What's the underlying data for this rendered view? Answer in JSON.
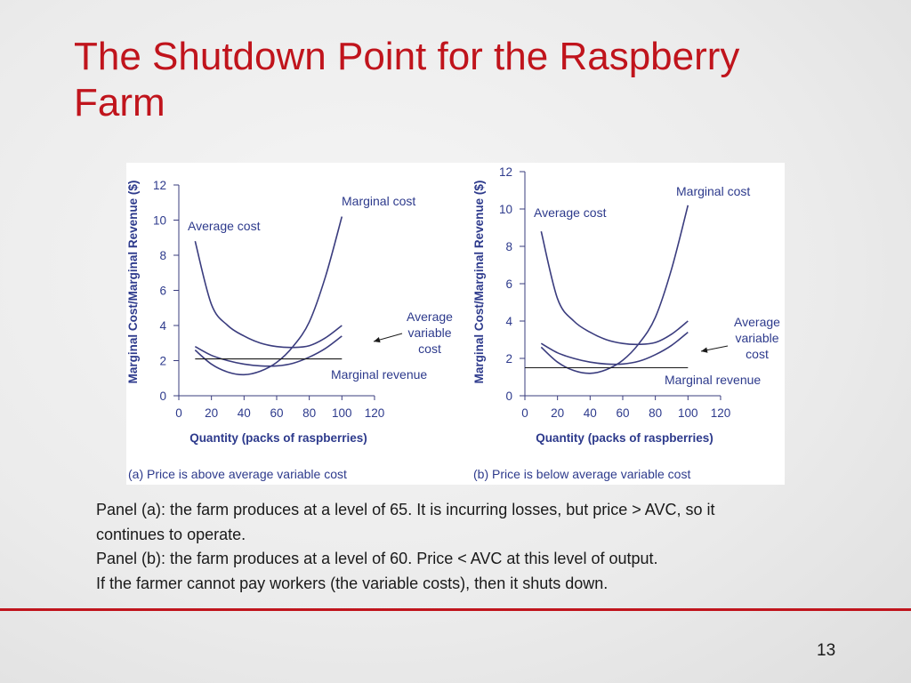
{
  "slide": {
    "title": "The Shutdown Point for the Raspberry Farm",
    "caption_lines": [
      "Panel (a):  the farm produces at a level of 65. It is incurring losses, but price > AVC, so it",
      "continues to operate.",
      "Panel (b):  the farm produces at a level of 60. Price < AVC at this level of output.",
      "If the farmer cannot pay workers (the variable costs), then it shuts down."
    ],
    "page_number": "13"
  },
  "colors": {
    "curve": "#3a3c7e",
    "axis_text": "#2d3a8c",
    "title": "#c0141c"
  },
  "chart_data": [
    {
      "type": "line",
      "panel_caption": "(a) Price is above average variable cost",
      "xlabel": "Quantity (packs of raspberries)",
      "ylabel": "Marginal Cost/Marginal Revenue ($)",
      "xlim": [
        0,
        120
      ],
      "ylim": [
        0,
        12
      ],
      "xticks": [
        0,
        20,
        40,
        60,
        80,
        100,
        120
      ],
      "yticks": [
        0,
        2,
        4,
        6,
        8,
        10,
        12
      ],
      "series": [
        {
          "name": "Marginal cost",
          "label": "Marginal cost",
          "x": [
            10,
            20,
            30,
            40,
            50,
            60,
            70,
            80,
            90,
            100
          ],
          "y": [
            2.6,
            1.8,
            1.35,
            1.2,
            1.4,
            1.9,
            2.8,
            4.2,
            6.8,
            10.2
          ]
        },
        {
          "name": "Average cost",
          "label": "Average cost",
          "x": [
            10,
            20,
            30,
            40,
            50,
            60,
            70,
            80,
            90,
            100
          ],
          "y": [
            8.8,
            5.2,
            4.0,
            3.4,
            3.0,
            2.8,
            2.75,
            2.85,
            3.3,
            4.0
          ]
        },
        {
          "name": "Average variable cost",
          "label": [
            "Average",
            "variable",
            "cost"
          ],
          "x": [
            10,
            20,
            30,
            40,
            50,
            60,
            70,
            80,
            90,
            100
          ],
          "y": [
            2.8,
            2.3,
            2.0,
            1.8,
            1.7,
            1.7,
            1.85,
            2.2,
            2.7,
            3.4
          ]
        },
        {
          "name": "Marginal revenue",
          "label": "Marginal revenue",
          "x": [
            10,
            100
          ],
          "y": [
            2.1,
            2.1
          ]
        }
      ]
    },
    {
      "type": "line",
      "panel_caption": "(b) Price is below average variable cost",
      "xlabel": "Quantity (packs of raspberries)",
      "ylabel": "Marginal Cost/Marginal Revenue ($)",
      "xlim": [
        0,
        120
      ],
      "ylim": [
        0,
        12
      ],
      "xticks": [
        0,
        20,
        40,
        60,
        80,
        100,
        120
      ],
      "yticks": [
        0,
        2,
        4,
        6,
        8,
        10,
        12
      ],
      "series": [
        {
          "name": "Marginal cost",
          "label": "Marginal cost",
          "x": [
            10,
            20,
            30,
            40,
            50,
            60,
            70,
            80,
            90,
            100
          ],
          "y": [
            2.6,
            1.8,
            1.35,
            1.2,
            1.4,
            1.9,
            2.8,
            4.2,
            6.8,
            10.2
          ]
        },
        {
          "name": "Average cost",
          "label": "Average cost",
          "x": [
            10,
            20,
            30,
            40,
            50,
            60,
            70,
            80,
            90,
            100
          ],
          "y": [
            8.8,
            5.2,
            4.0,
            3.4,
            3.0,
            2.8,
            2.75,
            2.85,
            3.3,
            4.0
          ]
        },
        {
          "name": "Average variable cost",
          "label": [
            "Average",
            "variable",
            "cost"
          ],
          "x": [
            10,
            20,
            30,
            40,
            50,
            60,
            70,
            80,
            90,
            100
          ],
          "y": [
            2.8,
            2.3,
            2.0,
            1.8,
            1.7,
            1.7,
            1.85,
            2.2,
            2.7,
            3.4
          ]
        },
        {
          "name": "Marginal revenue",
          "label": "Marginal revenue",
          "x": [
            0,
            100
          ],
          "y": [
            1.5,
            1.5
          ]
        }
      ]
    }
  ]
}
